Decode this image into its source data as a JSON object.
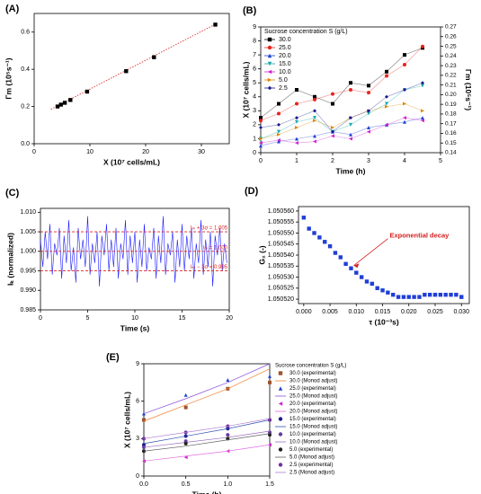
{
  "chart_data": [
    {
      "type": "scatter",
      "panel": "(A)",
      "xlabel": "X (10⁷ cells/mL)",
      "ylabel": "Γm (10⁵s⁻¹)",
      "xlim": [
        0,
        35
      ],
      "xticks": [
        0,
        10,
        20,
        30
      ],
      "ylim": [
        0,
        0.7
      ],
      "yticks": [
        {
          "value": 0,
          "label": "0.0"
        },
        0.2,
        0.4,
        0.6
      ],
      "x": [
        4.2,
        4.8,
        5.5,
        6.5,
        9.5,
        16.5,
        21.5,
        32.5
      ],
      "values": [
        0.2,
        0.21,
        0.22,
        0.235,
        0.28,
        0.39,
        0.465,
        0.64
      ],
      "color": "#000000",
      "marker": "square",
      "fit": {
        "x": [
          3,
          33
        ],
        "y": [
          0.185,
          0.65
        ],
        "color": "#e03030"
      }
    },
    {
      "type": "line",
      "panel": "(B)",
      "xlabel": "Time (h)",
      "ylabel": "X (10⁷ cells/mL)",
      "y2label": "Γm (10⁵s⁻¹)",
      "legend_title": "Sucrose concentration S (g/L)",
      "xlim": [
        0,
        5
      ],
      "xticks": [
        0,
        1,
        2,
        3,
        4,
        5
      ],
      "ylim": [
        0,
        9
      ],
      "yticks": [
        0,
        1,
        2,
        3,
        4,
        5,
        6,
        7,
        8,
        9
      ],
      "y2lim": [
        0.14,
        0.27
      ],
      "y2ticks": [
        0.14,
        0.15,
        0.16,
        0.17,
        0.18,
        0.19,
        {
          "value": 0.2,
          "label": "0.20"
        },
        0.21,
        0.22,
        0.23,
        0.24,
        0.25,
        0.26,
        0.27
      ],
      "x": [
        0,
        0.5,
        1,
        1.5,
        2,
        2.5,
        3,
        3.5,
        4,
        4.5
      ],
      "series": [
        {
          "name": "30.0",
          "color": "#000000",
          "marker": "square",
          "linestyle": "solid",
          "values": [
            2.5,
            3.5,
            4.5,
            4.0,
            3.5,
            5.0,
            4.8,
            5.8,
            7.0,
            7.5
          ]
        },
        {
          "name": "25.0",
          "color": "#e8231e",
          "marker": "circle",
          "linestyle": "solid",
          "values": [
            2.3,
            2.8,
            3.5,
            3.8,
            4.2,
            4.5,
            4.3,
            5.5,
            6.3,
            7.6
          ]
        },
        {
          "name": "20.0",
          "color": "#1f3fd6",
          "marker": "triangle-up",
          "linestyle": "solid",
          "values": [
            0.5,
            0.8,
            1.0,
            1.2,
            1.5,
            1.3,
            1.8,
            2.0,
            2.2,
            2.5
          ]
        },
        {
          "name": "15.0",
          "color": "#17a8a8",
          "marker": "triangle-down",
          "linestyle": "solid",
          "values": [
            1.0,
            1.5,
            2.2,
            2.5,
            1.5,
            2.0,
            2.8,
            3.5,
            4.5,
            4.8
          ]
        },
        {
          "name": "10.0",
          "color": "#d020d0",
          "marker": "triangle-left",
          "linestyle": "solid",
          "values": [
            0.7,
            0.9,
            0.7,
            0.8,
            1.2,
            1.0,
            1.5,
            2.0,
            2.5,
            2.3
          ]
        },
        {
          "name": "5.0",
          "color": "#d88a00",
          "marker": "triangle-right",
          "linestyle": "solid",
          "values": [
            1.0,
            1.3,
            1.8,
            2.3,
            1.8,
            2.5,
            3.0,
            3.3,
            3.5,
            3.0
          ]
        },
        {
          "name": "2.5",
          "color": "#1a1a8c",
          "marker": "diamond",
          "linestyle": "solid",
          "values": [
            1.8,
            2.0,
            2.5,
            3.0,
            1.5,
            2.5,
            3.0,
            4.0,
            4.5,
            5.0
          ]
        }
      ]
    },
    {
      "type": "line",
      "panel": "(C)",
      "xlabel": "Time (s)",
      "ylabel": "Iₖ (normalized)",
      "color": "#1a1aff",
      "xlim": [
        0,
        20
      ],
      "xticks": [
        0,
        5,
        10,
        15,
        20
      ],
      "ylim": [
        0.985,
        1.011
      ],
      "yticks": [
        0.985,
        {
          "value": 0.99,
          "label": "0.990"
        },
        0.995,
        {
          "value": 1,
          "label": "1.000"
        },
        1.005,
        {
          "value": 1.01,
          "label": "1.010"
        }
      ],
      "x": [
        0,
        0.25,
        0.5,
        0.75,
        1,
        1.25,
        1.5,
        1.75,
        2,
        2.25,
        2.5,
        2.75,
        3,
        3.25,
        3.5,
        3.75,
        4,
        4.25,
        4.5,
        4.75,
        5,
        5.25,
        5.5,
        5.75,
        6,
        6.25,
        6.5,
        6.75,
        7,
        7.25,
        7.5,
        7.75,
        8,
        8.25,
        8.5,
        8.75,
        9,
        9.25,
        9.5,
        9.75,
        10,
        10.25,
        10.5,
        10.75,
        11,
        11.25,
        11.5,
        11.75,
        12,
        12.25,
        12.5,
        12.75,
        13,
        13.25,
        13.5,
        13.75,
        14,
        14.25,
        14.5,
        14.75,
        15,
        15.25,
        15.5,
        15.75,
        16,
        16.25,
        16.5,
        16.75,
        17,
        17.25,
        17.5,
        17.75,
        18,
        18.25,
        18.5,
        18.75,
        19,
        19.25,
        19.5,
        19.75
      ],
      "values": [
        1.003,
        0.996,
        1.005,
        0.998,
        1.007,
        0.994,
        1.002,
        0.999,
        1.006,
        0.993,
        1.004,
        0.997,
        1.008,
        0.995,
        1.001,
        0.992,
        1.006,
        0.998,
        1.003,
        0.996,
        1.009,
        0.994,
        1.002,
        0.997,
        1.005,
        0.991,
        1.004,
        0.999,
        1.007,
        0.995,
        1.003,
        0.996,
        1.006,
        0.993,
        1.002,
        0.998,
        1.008,
        0.994,
        1.004,
        0.997,
        1.005,
        0.992,
        1.003,
        0.996,
        1.007,
        0.995,
        1.001,
        0.998,
        1.006,
        0.993,
        1.004,
        0.997,
        1.009,
        0.994,
        1.002,
        0.999,
        1.005,
        0.992,
        1.003,
        0.996,
        1.007,
        0.995,
        1.004,
        0.998,
        1.006,
        0.993,
        1.002,
        0.997,
        1.008,
        0.994,
        1.003,
        0.996,
        1.005,
        0.991,
        1.004,
        0.999,
        1.006,
        0.995,
        1.002,
        0.997
      ],
      "hlines": [
        {
          "value": 1.005,
          "label": "Iₘ + 3σ = 1.005"
        },
        {
          "value": 1.0,
          "label": "Iₘ = 1.000"
        },
        {
          "value": 0.995,
          "label": "Iₘ − 3σ = 0.995"
        }
      ],
      "hline_color": "#e02020"
    },
    {
      "type": "scatter",
      "panel": "(D)",
      "xlabel": "τ (10⁻³s)",
      "ylabel": "G₂ (-)",
      "annotation": "Exponential decay",
      "annotation_color": "#d42020",
      "xlim": [
        -0.001,
        0.0315
      ],
      "xticks": [
        {
          "value": 0,
          "label": "0.000"
        },
        0.005,
        {
          "value": 0.01,
          "label": "0.010"
        },
        0.015,
        {
          "value": 0.02,
          "label": "0.020"
        },
        0.025,
        {
          "value": 0.03,
          "label": "0.030"
        }
      ],
      "ylim": [
        1.050518,
        1.050562
      ],
      "yticks": [
        {
          "value": 1.05052,
          "label": "1.050520"
        },
        1.050525,
        {
          "value": 1.05053,
          "label": "1.050530"
        },
        1.050535,
        {
          "value": 1.05054,
          "label": "1.050540"
        },
        1.050545,
        {
          "value": 1.05055,
          "label": "1.050550"
        },
        1.050555,
        {
          "value": 1.05056,
          "label": "1.050560"
        }
      ],
      "x": [
        0,
        0.001,
        0.002,
        0.003,
        0.004,
        0.005,
        0.006,
        0.007,
        0.008,
        0.009,
        0.01,
        0.011,
        0.012,
        0.013,
        0.014,
        0.015,
        0.016,
        0.017,
        0.018,
        0.019,
        0.02,
        0.021,
        0.022,
        0.023,
        0.024,
        0.025,
        0.026,
        0.027,
        0.028,
        0.029,
        0.03
      ],
      "values": [
        1.050557,
        1.050552,
        1.05055,
        1.050548,
        1.050546,
        1.050544,
        1.050541,
        1.050539,
        1.050536,
        1.050534,
        1.050532,
        1.05053,
        1.050528,
        1.050527,
        1.050525,
        1.050524,
        1.050523,
        1.050522,
        1.050521,
        1.050521,
        1.050521,
        1.050521,
        1.050521,
        1.050522,
        1.050522,
        1.050522,
        1.050522,
        1.050522,
        1.050522,
        1.050522,
        1.050521
      ],
      "color": "#1f3fd6",
      "marker": "square"
    },
    {
      "type": "line",
      "panel": "(E)",
      "xlabel": "Time (h)",
      "ylabel": "X (10⁷ cells/mL)",
      "legend_title": "Sucrose concentration S (g/L)",
      "xlim": [
        0,
        1.5
      ],
      "xticks": [
        {
          "value": 0,
          "label": "0.0"
        },
        0.5,
        {
          "value": 1,
          "label": "1.0"
        },
        1.5
      ],
      "ylim": [
        0,
        9
      ],
      "yticks": [
        0,
        3,
        6,
        9
      ],
      "x": [
        0,
        0.5,
        1,
        1.5
      ],
      "series": [
        {
          "name": "30.0 (experimental)",
          "color": "#a0522d",
          "marker": "square",
          "linestyle": "none",
          "values": [
            4.5,
            5.5,
            7.0,
            7.5
          ]
        },
        {
          "name": "30.0 (Monod adjust)",
          "color": "#f08030",
          "linestyle": "solid",
          "values": [
            4.4,
            5.7,
            7.0,
            8.6
          ]
        },
        {
          "name": "25.0 (experimental)",
          "color": "#2040d0",
          "marker": "triangle-up",
          "linestyle": "none",
          "values": [
            5.0,
            6.5,
            7.7,
            8.0
          ]
        },
        {
          "name": "25.0 (Monod adjust)",
          "color": "#8a4fd8",
          "linestyle": "solid",
          "values": [
            5.0,
            6.2,
            7.5,
            9.0
          ]
        },
        {
          "name": "20.0 (experimental)",
          "color": "#d020d0",
          "marker": "triangle-left",
          "linestyle": "none",
          "values": [
            1.2,
            1.5,
            2.0,
            2.5
          ]
        },
        {
          "name": "20.0 (Monod adjust)",
          "color": "#e070e0",
          "linestyle": "solid",
          "values": [
            1.2,
            1.6,
            2.0,
            2.5
          ]
        },
        {
          "name": "15.0 (experimental)",
          "color": "#1a1a8c",
          "marker": "circle",
          "linestyle": "none",
          "values": [
            2.5,
            3.2,
            3.8,
            4.5
          ]
        },
        {
          "name": "15.0 (Monod adjust)",
          "color": "#3050b0",
          "linestyle": "solid",
          "values": [
            2.6,
            3.2,
            3.8,
            4.5
          ]
        },
        {
          "name": "10.0 (experimental)",
          "color": "#6a3aa0",
          "marker": "circle",
          "linestyle": "none",
          "values": [
            2.3,
            2.8,
            3.3,
            3.5
          ]
        },
        {
          "name": "10.0 (Monod adjust)",
          "color": "#9a70c0",
          "linestyle": "solid",
          "values": [
            2.3,
            2.7,
            3.1,
            3.6
          ]
        },
        {
          "name": "5.0 (experimental)",
          "color": "#202020",
          "marker": "circle",
          "linestyle": "none",
          "values": [
            2.0,
            2.6,
            3.0,
            3.3
          ]
        },
        {
          "name": "5.0 (Monod adjust)",
          "color": "#606060",
          "linestyle": "solid",
          "values": [
            2.0,
            2.4,
            2.9,
            3.4
          ]
        },
        {
          "name": "2.5 (experimental)",
          "color": "#7030a0",
          "marker": "circle",
          "linestyle": "none",
          "values": [
            3.0,
            3.5,
            4.0,
            4.5
          ]
        },
        {
          "name": "2.5 (Monod adjust)",
          "color": "#b080d0",
          "linestyle": "solid",
          "values": [
            3.0,
            3.5,
            4.0,
            4.6
          ]
        }
      ]
    }
  ]
}
